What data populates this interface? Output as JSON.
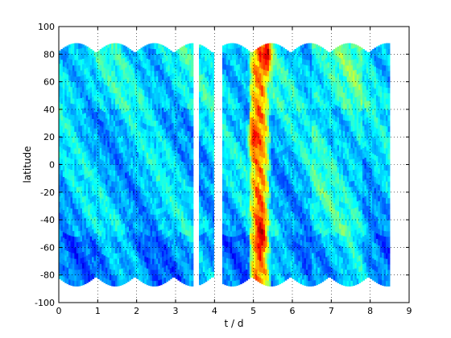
{
  "chart_data": {
    "type": "heatmap",
    "title": "",
    "xlabel": "t / d",
    "ylabel": "latitude",
    "xlim": [
      0,
      9
    ],
    "ylim": [
      -100,
      100
    ],
    "x_ticks": [
      0,
      1,
      2,
      3,
      4,
      5,
      6,
      7,
      8,
      9
    ],
    "y_ticks": [
      -100,
      -80,
      -60,
      -40,
      -20,
      0,
      20,
      40,
      60,
      80,
      100
    ],
    "grid": true,
    "grid_style": "dotted",
    "colormap": "jet",
    "coverage_lat_max": 88,
    "coverage_lat_min": -88,
    "coverage_oscillation_period_days": 1,
    "segments": [
      {
        "t_start": 0.0,
        "t_end": 3.45
      },
      {
        "t_start": 3.6,
        "t_end": 3.98
      },
      {
        "t_start": 4.2,
        "t_end": 8.5
      }
    ],
    "intensity_features": [
      {
        "t_center": 5.15,
        "t_width": 0.55,
        "level": 0.75,
        "note": "broad high band"
      },
      {
        "t_center": 5.2,
        "lat_center": -50,
        "level": 0.95
      },
      {
        "t_center": 5.35,
        "lat_center": 80,
        "level": 0.95
      },
      {
        "t_center": 5.0,
        "lat_center": 20,
        "level": 0.85
      }
    ]
  }
}
